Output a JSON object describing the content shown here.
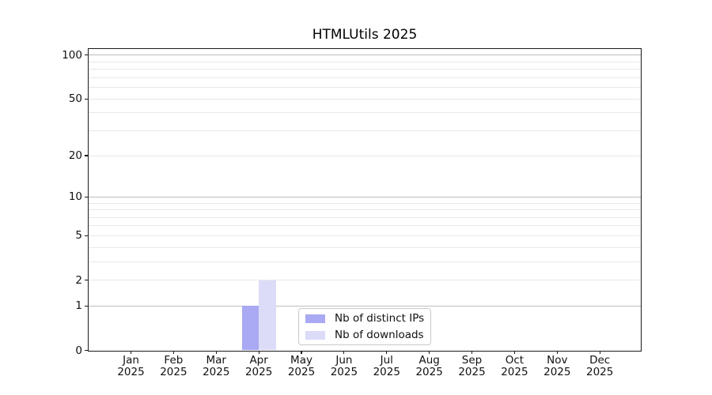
{
  "chart_data": {
    "type": "bar",
    "title": "HTMLUtils 2025",
    "year": "2025",
    "categories": [
      "Jan",
      "Feb",
      "Mar",
      "Apr",
      "May",
      "Jun",
      "Jul",
      "Aug",
      "Sep",
      "Oct",
      "Nov",
      "Dec"
    ],
    "series": [
      {
        "name": "Nb of distinct IPs",
        "color": "#a9a9f4",
        "values": [
          0,
          0,
          0,
          1,
          0,
          0,
          0,
          0,
          0,
          0,
          0,
          0
        ]
      },
      {
        "name": "Nb of downloads",
        "color": "#dcdcf9",
        "values": [
          0,
          0,
          0,
          2,
          0,
          0,
          0,
          0,
          0,
          0,
          0,
          0
        ]
      }
    ],
    "xlabel": "",
    "ylabel": "",
    "yscale": "log1p",
    "ylim": [
      0,
      111
    ],
    "yticks": [
      0,
      1,
      2,
      5,
      10,
      20,
      50,
      100
    ],
    "grid": {
      "major": [
        1,
        10,
        100
      ],
      "minor": [
        2,
        3,
        4,
        5,
        6,
        7,
        8,
        9,
        20,
        30,
        40,
        50,
        60,
        70,
        80,
        90
      ],
      "major_color": "#bdbdbd",
      "minor_color": "#e8e8e8"
    },
    "legend": {
      "position": "lower-center"
    }
  }
}
